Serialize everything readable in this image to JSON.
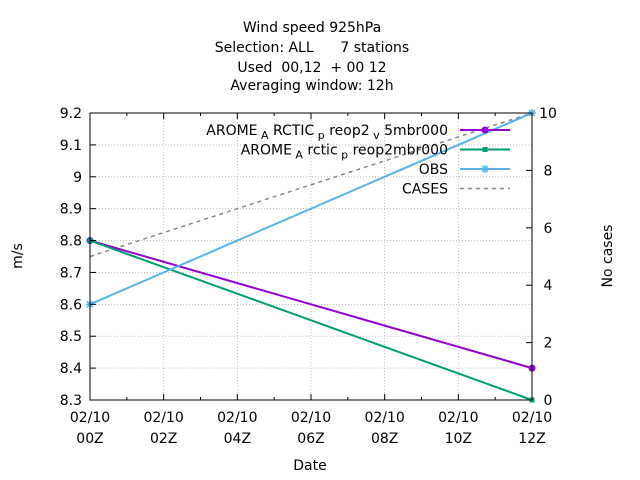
{
  "chart_data": {
    "type": "line",
    "title": [
      "Wind speed 925hPa",
      "Selection: ALL      7 stations",
      "Used  00,12  + 00 12",
      "Averaging window: 12h"
    ],
    "xlabel": "Date",
    "ylabel": "m/s",
    "y2label": "No cases",
    "x_ticks": [
      {
        "hour": 0,
        "line1": "02/10",
        "line2": "00Z"
      },
      {
        "hour": 2,
        "line1": "02/10",
        "line2": "02Z"
      },
      {
        "hour": 4,
        "line1": "02/10",
        "line2": "04Z"
      },
      {
        "hour": 6,
        "line1": "02/10",
        "line2": "06Z"
      },
      {
        "hour": 8,
        "line1": "02/10",
        "line2": "08Z"
      },
      {
        "hour": 10,
        "line1": "02/10",
        "line2": "10Z"
      },
      {
        "hour": 12,
        "line1": "02/10",
        "line2": "12Z"
      }
    ],
    "xlim": [
      0,
      12
    ],
    "ylim": [
      8.3,
      9.2
    ],
    "y_ticks": [
      "8.3",
      "8.4",
      "8.5",
      "8.6",
      "8.7",
      "8.8",
      "8.9",
      "9",
      "9.1",
      "9.2"
    ],
    "y2lim": [
      0,
      10
    ],
    "y2_ticks": [
      "0",
      "2",
      "4",
      "6",
      "8",
      "10"
    ],
    "grid": true,
    "legend_position": "top-right",
    "series": [
      {
        "name": "AROME_ARCTIC_preop2_v5mbr000",
        "label_parts": [
          "AROME",
          "A",
          "RCTIC",
          "p",
          "reop2",
          "v",
          "5mbr000"
        ],
        "color": "#9400d3",
        "marker": "circle",
        "axis": "y",
        "x": [
          0,
          12
        ],
        "y": [
          8.8,
          8.4
        ]
      },
      {
        "name": "AROME_Arctic_preop2mbr000",
        "label_parts": [
          "AROME",
          "A",
          "rctic",
          "p",
          "reop2mbr000"
        ],
        "color": "#009e73",
        "marker": "square",
        "axis": "y",
        "x": [
          0,
          12
        ],
        "y": [
          8.8,
          8.3
        ]
      },
      {
        "name": "OBS",
        "color": "#56b4e9",
        "marker": "star",
        "axis": "y",
        "x": [
          0,
          12
        ],
        "y": [
          8.6,
          9.2
        ]
      },
      {
        "name": "CASES",
        "color": "#888888",
        "marker": "none",
        "dashed": true,
        "axis": "y2",
        "x": [
          0,
          12
        ],
        "y": [
          5,
          10
        ]
      }
    ]
  }
}
